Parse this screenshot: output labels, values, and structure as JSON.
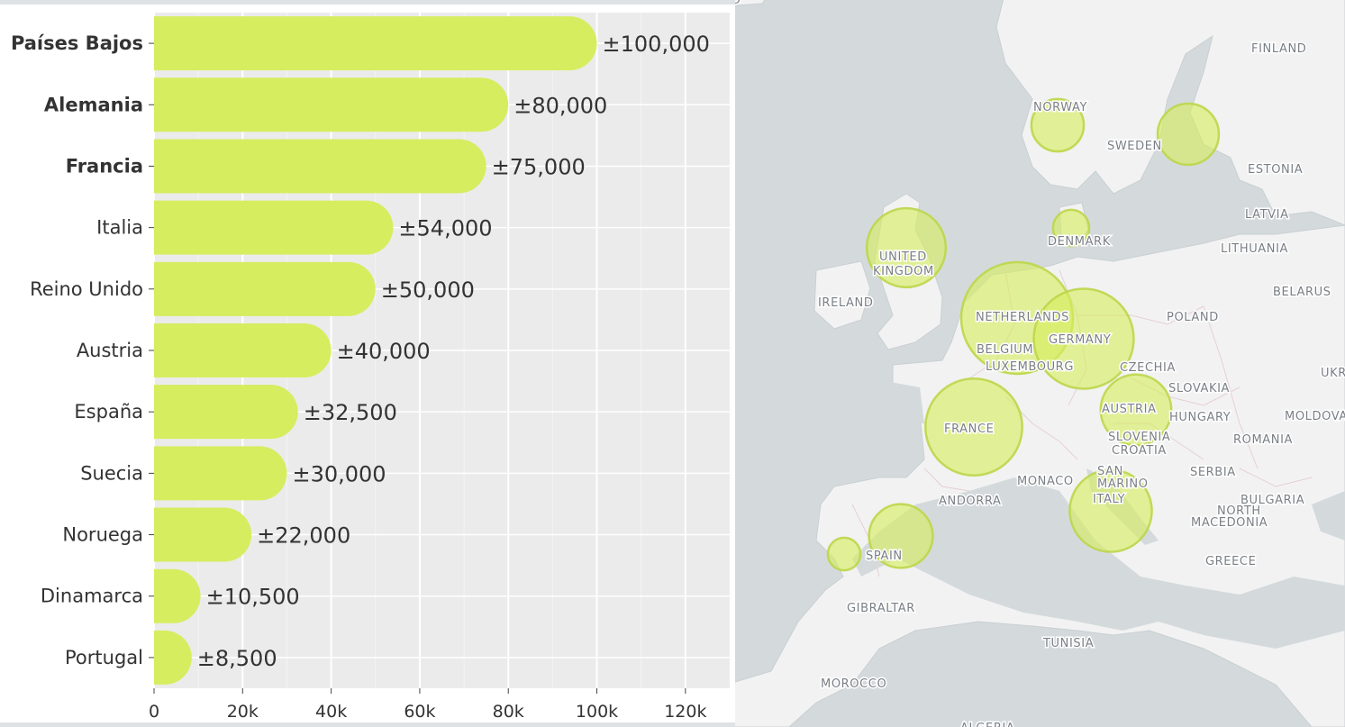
{
  "chart_data": [
    {
      "type": "bar",
      "orientation": "horizontal",
      "categories": [
        "Países Bajos",
        "Alemania",
        "Francia",
        "Italia",
        "Reino Unido",
        "Austria",
        "España",
        "Suecia",
        "Noruega",
        "Dinamarca",
        "Portugal"
      ],
      "values": [
        100000,
        80000,
        75000,
        54000,
        50000,
        40000,
        32500,
        30000,
        22000,
        10500,
        8500
      ],
      "value_labels": [
        "±100,000",
        "±80,000",
        "±75,000",
        "±54,000",
        "±50,000",
        "±40,000",
        "±32,500",
        "±30,000",
        "±22,000",
        "±10,500",
        "±8,500"
      ],
      "bold_categories": [
        "Países Bajos",
        "Alemania",
        "Francia"
      ],
      "x_ticks": [
        "0",
        "20k",
        "40k",
        "60k",
        "80k",
        "100k",
        "120k"
      ],
      "x_tick_values": [
        0,
        20000,
        40000,
        60000,
        80000,
        100000,
        120000
      ],
      "xlim": [
        0,
        130000
      ],
      "title": "",
      "xlabel": "",
      "ylabel": "",
      "grid": true,
      "colors": {
        "bar": "#d6ed5f",
        "plot_bg": "#ebebeb",
        "grid": "#ffffff",
        "text": "#333333"
      }
    },
    {
      "type": "bubble-map",
      "points": [
        {
          "country": "Netherlands",
          "value": 100000
        },
        {
          "country": "Germany",
          "value": 80000
        },
        {
          "country": "France",
          "value": 75000
        },
        {
          "country": "Italy",
          "value": 54000
        },
        {
          "country": "United Kingdom",
          "value": 50000
        },
        {
          "country": "Austria",
          "value": 40000
        },
        {
          "country": "Spain",
          "value": 32500
        },
        {
          "country": "Sweden",
          "value": 30000
        },
        {
          "country": "Norway",
          "value": 22000
        },
        {
          "country": "Denmark",
          "value": 10500
        },
        {
          "country": "Portugal",
          "value": 8500
        }
      ],
      "colors": {
        "bubble_fill": "#d6ed5f",
        "bubble_stroke": "#bcd64a",
        "land": "#f2f2f2",
        "sea": "#d4dadc",
        "border": "#e6cfd6"
      }
    }
  ],
  "map": {
    "labels": [
      "ICELAND",
      "FINLAND",
      "NORWAY",
      "SWEDEN",
      "ESTONIA",
      "LATVIA",
      "DENMARK",
      "LITHUANIA",
      "UNITED",
      "KINGDOM",
      "IRELAND",
      "BELARUS",
      "NETHERLANDS",
      "POLAND",
      "BELGIUM",
      "GERMANY",
      "LUXEMBOURG",
      "CZECHIA",
      "UKR",
      "SLOVAKIA",
      "AUSTRIA",
      "HUNGARY",
      "MOLDOVA",
      "FRANCE",
      "SLOVENIA",
      "ROMANIA",
      "CROATIA",
      "SAN",
      "MARINO",
      "SERBIA",
      "MONACO",
      "ITALY",
      "ANDORRA",
      "BULGARIA",
      "NORTH",
      "MACEDONIA",
      "SPAIN",
      "GREECE",
      "GIBRALTAR",
      "TUNISIA",
      "MOROCCO",
      "ALGERIA"
    ]
  }
}
